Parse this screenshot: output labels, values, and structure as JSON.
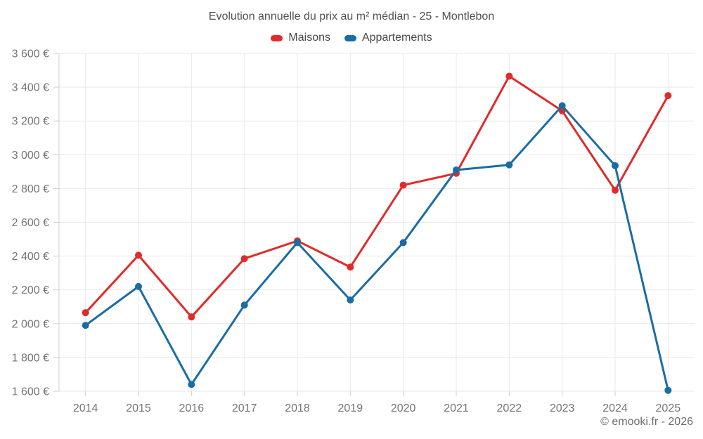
{
  "chart_data": {
    "type": "line",
    "title": "Evolution annuelle du prix au m² médian - 25 - Montlebon",
    "categories": [
      "2014",
      "2015",
      "2016",
      "2017",
      "2018",
      "2019",
      "2020",
      "2021",
      "2022",
      "2023",
      "2024",
      "2025"
    ],
    "series": [
      {
        "name": "Maisons",
        "color": "#e02b2b",
        "values": [
          2065,
          2405,
          2040,
          2385,
          2490,
          2335,
          2820,
          2890,
          3465,
          3260,
          2790,
          3350
        ]
      },
      {
        "name": "Appartements",
        "color": "#1a6da4",
        "values": [
          1990,
          2220,
          1640,
          2110,
          2480,
          2140,
          2480,
          2910,
          2940,
          3290,
          2935,
          1605
        ]
      }
    ],
    "ylabel": "",
    "xlabel": "",
    "ylim": [
      1600,
      3600
    ],
    "ytick_step": 200,
    "ytick_suffix": " €",
    "grid": true,
    "legend_position": "top"
  },
  "footer": {
    "copyright": "© emooki.fr - 2026"
  }
}
